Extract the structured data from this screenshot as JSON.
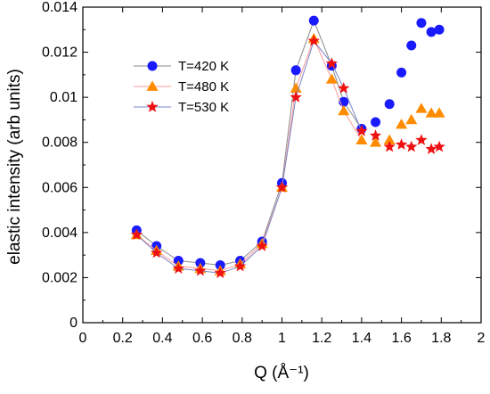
{
  "chart_data": {
    "type": "scatter",
    "xlabel": "Q (Å⁻¹)",
    "ylabel": "elastic intensity (arb units)",
    "xlim": [
      0,
      2
    ],
    "ylim": [
      0,
      0.014
    ],
    "x_ticks": [
      "0",
      "0.2",
      "0.4",
      "0.6",
      "0.8",
      "1",
      "1.2",
      "1.4",
      "1.6",
      "1.8",
      "2"
    ],
    "y_ticks": [
      "0",
      "0.002",
      "0.004",
      "0.006",
      "0.008",
      "0.01",
      "0.012",
      "0.014"
    ],
    "grid": false,
    "legend_position": "top-left",
    "series": [
      {
        "name": "T=420 K",
        "marker": "circle",
        "color": "#1a1aff",
        "line_color": "#8a8a8a",
        "connected_to": 1.4,
        "x": [
          0.27,
          0.37,
          0.48,
          0.59,
          0.69,
          0.79,
          0.9,
          1.0,
          1.07,
          1.16,
          1.25,
          1.31,
          1.4,
          1.47,
          1.54,
          1.6,
          1.65,
          1.7,
          1.75,
          1.79
        ],
        "y": [
          0.0041,
          0.0034,
          0.00275,
          0.00265,
          0.00255,
          0.00275,
          0.0036,
          0.0062,
          0.0112,
          0.0134,
          0.0114,
          0.0098,
          0.0086,
          0.0089,
          0.0097,
          0.0111,
          0.0123,
          0.0133,
          0.0129,
          0.013
        ]
      },
      {
        "name": "T=480 K",
        "marker": "triangle",
        "color": "#ff8c00",
        "line_color": "#ff9a9a",
        "connected_to": 1.4,
        "x": [
          0.27,
          0.37,
          0.48,
          0.59,
          0.69,
          0.79,
          0.9,
          1.0,
          1.07,
          1.16,
          1.25,
          1.31,
          1.4,
          1.47,
          1.54,
          1.6,
          1.65,
          1.7,
          1.75,
          1.79
        ],
        "y": [
          0.0039,
          0.0032,
          0.0025,
          0.0024,
          0.0023,
          0.0026,
          0.0035,
          0.006,
          0.0104,
          0.0126,
          0.0108,
          0.0094,
          0.0081,
          0.008,
          0.0081,
          0.0088,
          0.009,
          0.0095,
          0.0093,
          0.0093
        ]
      },
      {
        "name": "T=530 K",
        "marker": "star",
        "color": "#ee1111",
        "line_color": "#7a86c8",
        "connected_to": 1.4,
        "x": [
          0.27,
          0.37,
          0.48,
          0.59,
          0.69,
          0.79,
          0.9,
          1.0,
          1.07,
          1.16,
          1.25,
          1.31,
          1.4,
          1.47,
          1.54,
          1.6,
          1.65,
          1.7,
          1.75,
          1.79
        ],
        "y": [
          0.0039,
          0.0031,
          0.0024,
          0.0023,
          0.0022,
          0.0025,
          0.0034,
          0.006,
          0.01,
          0.0125,
          0.0115,
          0.0104,
          0.0085,
          0.0083,
          0.0078,
          0.0079,
          0.0078,
          0.0081,
          0.0077,
          0.0078
        ]
      }
    ]
  }
}
